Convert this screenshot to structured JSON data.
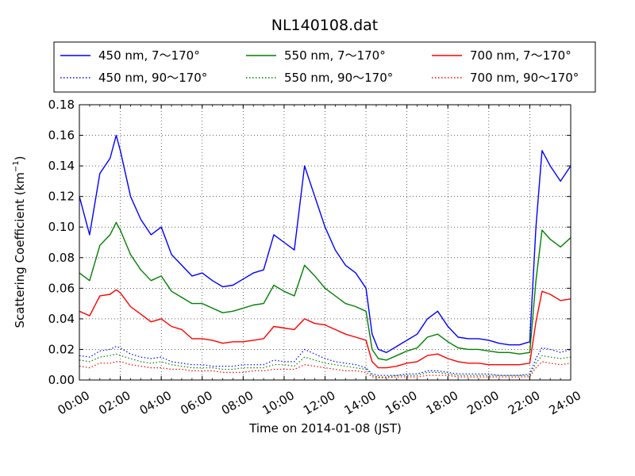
{
  "chart_data": {
    "type": "line",
    "title": "NL140108.dat",
    "xlabel": "Time on 2014-01-08 (JST)",
    "ylabel": "Scattering Coefficient (km",
    "ylabel_sup": "−1",
    "ylabel_close": ")",
    "xlim": [
      0,
      24
    ],
    "ylim": [
      0,
      0.18
    ],
    "grid": true,
    "legend_position": "top",
    "x_ticks": [
      0,
      2,
      4,
      6,
      8,
      10,
      12,
      14,
      16,
      18,
      20,
      22,
      24
    ],
    "x_tick_labels": [
      "00:00",
      "02:00",
      "04:00",
      "06:00",
      "08:00",
      "10:00",
      "12:00",
      "14:00",
      "16:00",
      "18:00",
      "20:00",
      "22:00",
      "24:00"
    ],
    "y_ticks": [
      0,
      0.02,
      0.04,
      0.06,
      0.08,
      0.1,
      0.12,
      0.14,
      0.16,
      0.18
    ],
    "y_tick_labels": [
      "0.00",
      "0.02",
      "0.04",
      "0.06",
      "0.08",
      "0.10",
      "0.12",
      "0.14",
      "0.16",
      "0.18"
    ],
    "x": [
      0,
      0.5,
      1,
      1.5,
      1.8,
      2,
      2.5,
      3,
      3.5,
      4,
      4.5,
      5,
      5.5,
      6,
      6.5,
      7,
      7.5,
      8,
      8.5,
      9,
      9.5,
      10,
      10.5,
      11,
      11.5,
      12,
      12.5,
      13,
      13.5,
      14,
      14.3,
      14.6,
      15,
      15.5,
      16,
      16.5,
      17,
      17.5,
      18,
      18.5,
      19,
      19.5,
      20,
      20.5,
      21,
      21.5,
      22,
      22.3,
      22.6,
      23,
      23.5,
      24
    ],
    "series": [
      {
        "name": "450 nm, 7～170°",
        "color": "#0000ff",
        "style": "solid",
        "values": [
          0.12,
          0.095,
          0.135,
          0.145,
          0.16,
          0.15,
          0.12,
          0.105,
          0.095,
          0.1,
          0.082,
          0.075,
          0.068,
          0.07,
          0.065,
          0.061,
          0.062,
          0.066,
          0.07,
          0.072,
          0.095,
          0.09,
          0.085,
          0.14,
          0.12,
          0.1,
          0.085,
          0.075,
          0.07,
          0.06,
          0.03,
          0.02,
          0.018,
          0.022,
          0.026,
          0.03,
          0.04,
          0.045,
          0.035,
          0.028,
          0.027,
          0.027,
          0.026,
          0.024,
          0.023,
          0.023,
          0.025,
          0.1,
          0.15,
          0.14,
          0.13,
          0.14
        ]
      },
      {
        "name": "550 nm, 7～170°",
        "color": "#008000",
        "style": "solid",
        "values": [
          0.07,
          0.065,
          0.088,
          0.095,
          0.103,
          0.098,
          0.082,
          0.072,
          0.065,
          0.068,
          0.058,
          0.054,
          0.05,
          0.05,
          0.047,
          0.044,
          0.045,
          0.047,
          0.049,
          0.05,
          0.062,
          0.058,
          0.055,
          0.075,
          0.068,
          0.06,
          0.055,
          0.05,
          0.048,
          0.045,
          0.02,
          0.014,
          0.013,
          0.016,
          0.019,
          0.021,
          0.028,
          0.03,
          0.025,
          0.021,
          0.02,
          0.02,
          0.019,
          0.018,
          0.018,
          0.017,
          0.018,
          0.065,
          0.098,
          0.092,
          0.087,
          0.093
        ]
      },
      {
        "name": "700 nm, 7～170°",
        "color": "#ff0000",
        "style": "solid",
        "values": [
          0.045,
          0.042,
          0.055,
          0.056,
          0.059,
          0.057,
          0.048,
          0.043,
          0.038,
          0.04,
          0.035,
          0.033,
          0.027,
          0.027,
          0.026,
          0.024,
          0.025,
          0.025,
          0.026,
          0.027,
          0.035,
          0.034,
          0.033,
          0.04,
          0.037,
          0.036,
          0.033,
          0.03,
          0.028,
          0.026,
          0.012,
          0.008,
          0.008,
          0.009,
          0.011,
          0.012,
          0.016,
          0.017,
          0.014,
          0.012,
          0.011,
          0.011,
          0.01,
          0.01,
          0.01,
          0.01,
          0.011,
          0.038,
          0.058,
          0.056,
          0.052,
          0.053
        ]
      },
      {
        "name": "450 nm, 90～170°",
        "color": "#0000ff",
        "style": "dotted",
        "values": [
          0.016,
          0.015,
          0.019,
          0.02,
          0.022,
          0.021,
          0.017,
          0.015,
          0.014,
          0.015,
          0.012,
          0.011,
          0.01,
          0.01,
          0.009,
          0.009,
          0.009,
          0.01,
          0.01,
          0.01,
          0.013,
          0.012,
          0.012,
          0.02,
          0.017,
          0.014,
          0.012,
          0.011,
          0.01,
          0.008,
          0.004,
          0.003,
          0.003,
          0.003,
          0.004,
          0.004,
          0.006,
          0.006,
          0.005,
          0.004,
          0.004,
          0.004,
          0.004,
          0.003,
          0.003,
          0.003,
          0.004,
          0.014,
          0.021,
          0.02,
          0.018,
          0.02
        ]
      },
      {
        "name": "550 nm, 90～170°",
        "color": "#008000",
        "style": "dotted",
        "values": [
          0.013,
          0.012,
          0.015,
          0.016,
          0.017,
          0.016,
          0.014,
          0.012,
          0.011,
          0.012,
          0.01,
          0.009,
          0.008,
          0.008,
          0.008,
          0.007,
          0.007,
          0.008,
          0.008,
          0.008,
          0.01,
          0.01,
          0.009,
          0.015,
          0.013,
          0.011,
          0.01,
          0.009,
          0.008,
          0.007,
          0.003,
          0.002,
          0.002,
          0.003,
          0.003,
          0.003,
          0.005,
          0.005,
          0.004,
          0.003,
          0.003,
          0.003,
          0.003,
          0.003,
          0.003,
          0.003,
          0.003,
          0.011,
          0.016,
          0.015,
          0.014,
          0.015
        ]
      },
      {
        "name": "700 nm, 90～170°",
        "color": "#ff0000",
        "style": "dotted",
        "values": [
          0.009,
          0.008,
          0.011,
          0.011,
          0.012,
          0.012,
          0.01,
          0.009,
          0.008,
          0.008,
          0.007,
          0.007,
          0.006,
          0.006,
          0.006,
          0.005,
          0.005,
          0.005,
          0.006,
          0.006,
          0.007,
          0.007,
          0.007,
          0.01,
          0.009,
          0.008,
          0.007,
          0.006,
          0.006,
          0.005,
          0.002,
          0.0015,
          0.0015,
          0.002,
          0.002,
          0.002,
          0.003,
          0.003,
          0.003,
          0.002,
          0.002,
          0.002,
          0.002,
          0.002,
          0.002,
          0.002,
          0.002,
          0.008,
          0.012,
          0.011,
          0.01,
          0.011
        ]
      }
    ]
  }
}
